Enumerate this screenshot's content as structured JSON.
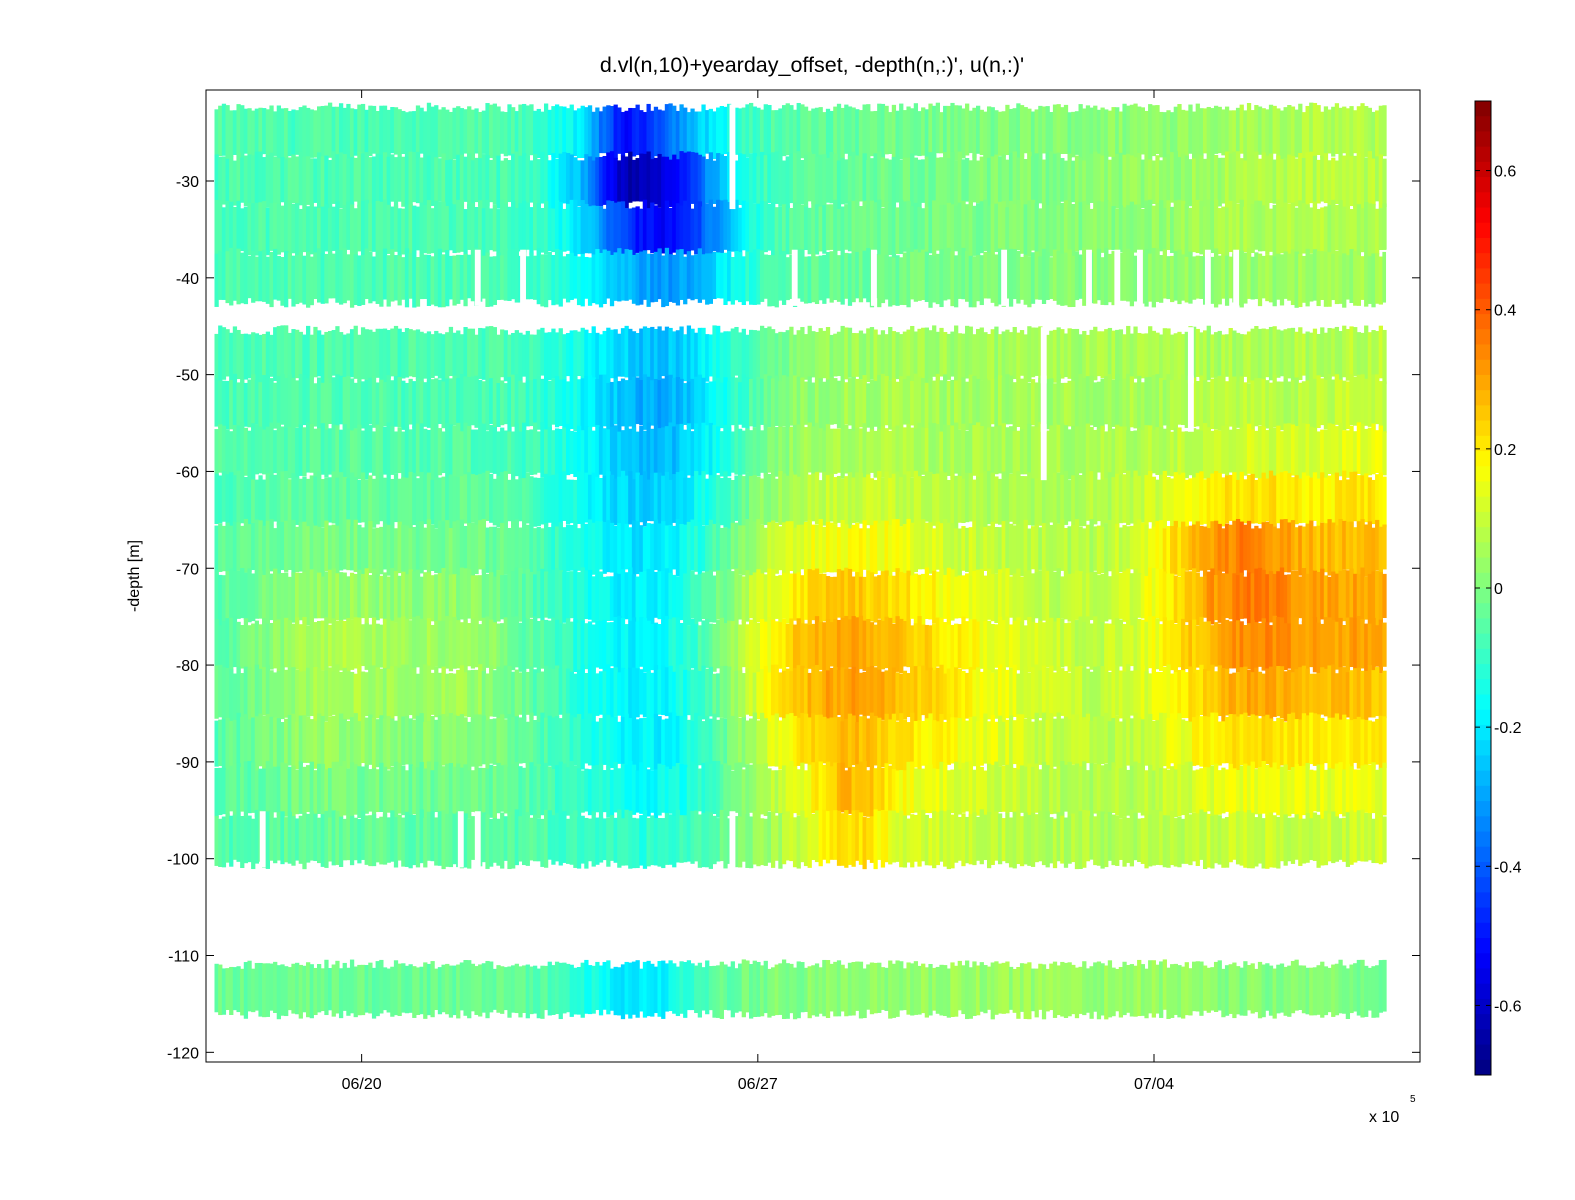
{
  "chart_data": {
    "type": "heatmap",
    "title": "d.vl(n,10)+yearday_offset, -depth(n,:)', u(n,:)'",
    "xlabel": "",
    "ylabel": "-depth [m]",
    "x_multiplier_label": "x 10",
    "x_multiplier_exponent": "5",
    "x_ticks": [
      {
        "label": "06/20",
        "day": 20
      },
      {
        "label": "06/27",
        "day": 27
      },
      {
        "label": "07/04",
        "day": 34
      }
    ],
    "xlim_days": [
      17.25,
      38.7
    ],
    "y_ticks": [
      -30,
      -40,
      -50,
      -60,
      -70,
      -80,
      -90,
      -100,
      -110,
      -120
    ],
    "ylim": [
      -121,
      -20.6
    ],
    "depth_bins": [
      -25,
      -30,
      -35,
      -40,
      -48,
      -53,
      -58,
      -63,
      -68,
      -73,
      -78,
      -83,
      -88,
      -93,
      -98,
      -113.5
    ],
    "bin_half_height": 2.6,
    "colorbar": {
      "range": [
        -0.7,
        0.7
      ],
      "ticks": [
        0.6,
        0.4,
        0.2,
        0,
        -0.2,
        -0.4,
        -0.6
      ],
      "colormap": "jet"
    },
    "time_samples": 320,
    "gap_columns": [
      {
        "day": 22.8,
        "rows": [
          3
        ]
      },
      {
        "day": 22.0,
        "rows": [
          3,
          14
        ]
      },
      {
        "day": 21.7,
        "rows": [
          14
        ]
      },
      {
        "day": 18.2,
        "rows": [
          14
        ]
      },
      {
        "day": 26.5,
        "rows": [
          0,
          1,
          14
        ]
      },
      {
        "day": 27.6,
        "rows": [
          3
        ]
      },
      {
        "day": 29.0,
        "rows": [
          3
        ]
      },
      {
        "day": 31.3,
        "rows": [
          3
        ]
      },
      {
        "day": 32.8,
        "rows": [
          3
        ]
      },
      {
        "day": 33.3,
        "rows": [
          3
        ]
      },
      {
        "day": 33.7,
        "rows": [
          3
        ]
      },
      {
        "day": 34.9,
        "rows": [
          3
        ]
      },
      {
        "day": 35.4,
        "rows": [
          3
        ]
      },
      {
        "day": 32.0,
        "rows": [
          4,
          5,
          6
        ]
      },
      {
        "day": 34.6,
        "rows": [
          4,
          5
        ]
      },
      {
        "day": 38.1,
        "rows": [
          3
        ]
      }
    ],
    "anomalies": [
      {
        "t": 25.0,
        "d": -30,
        "st": 0.9,
        "sd": 6,
        "a": -0.43
      },
      {
        "t": 24.6,
        "d": -27,
        "st": 0.35,
        "sd": 4,
        "a": -0.18
      },
      {
        "t": 25.7,
        "d": -35,
        "st": 0.7,
        "sd": 4,
        "a": -0.16
      },
      {
        "t": 25.3,
        "d": -52,
        "st": 1.1,
        "sd": 9,
        "a": -0.19
      },
      {
        "t": 25.0,
        "d": -72,
        "st": 1.0,
        "sd": 14,
        "a": -0.13
      },
      {
        "t": 25.5,
        "d": -90,
        "st": 1.0,
        "sd": 7,
        "a": -0.09
      },
      {
        "t": 24.8,
        "d": -113.5,
        "st": 0.8,
        "sd": 3,
        "a": -0.19
      },
      {
        "t": 28.2,
        "d": -80,
        "st": 1.3,
        "sd": 10,
        "a": 0.24
      },
      {
        "t": 28.6,
        "d": -96,
        "st": 0.5,
        "sd": 4,
        "a": 0.14
      },
      {
        "t": 35.7,
        "d": -77,
        "st": 1.2,
        "sd": 11,
        "a": 0.28
      },
      {
        "t": 35.3,
        "d": -68,
        "st": 1.0,
        "sd": 4,
        "a": 0.1
      },
      {
        "t": 38.0,
        "d": -75,
        "st": 0.8,
        "sd": 13,
        "a": 0.2
      },
      {
        "t": 30.5,
        "d": -82,
        "st": 1.4,
        "sd": 10,
        "a": 0.1
      },
      {
        "t": 19.5,
        "d": -80,
        "st": 1.1,
        "sd": 10,
        "a": 0.14
      },
      {
        "t": 21.8,
        "d": -80,
        "st": 0.8,
        "sd": 10,
        "a": 0.1
      },
      {
        "t": 32.0,
        "d": -110,
        "st": 3.5,
        "sd": 6,
        "a": 0.08
      },
      {
        "t": 37.0,
        "d": -30,
        "st": 2.0,
        "sd": 8,
        "a": 0.07
      }
    ]
  }
}
